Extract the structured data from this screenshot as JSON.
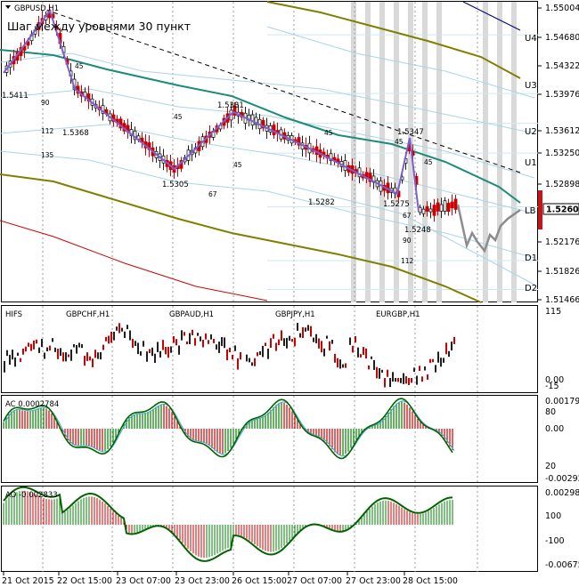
{
  "window": {
    "symbol_label": "GBPUSD,H1",
    "title": "Шаг между уровнями 30 пункт"
  },
  "colors": {
    "background": "#ffffff",
    "candle_up": "#1f1f1f",
    "candle_down": "#cc0000",
    "teal_ma": "#1a8c7a",
    "olive_ma": "#808000",
    "red_ma": "#cc0000",
    "navy_line": "#000080",
    "zigzag": "#7b5fd0",
    "band_lines": "#aad4e6",
    "forecast": "#8c8c8c",
    "price_marker": "#c81414",
    "vgrid_band": "#d9d9d9",
    "ac_up": "#008000",
    "ac_down": "#cc0000",
    "ao_line": "#006400"
  },
  "main": {
    "price_axis": [
      "1.55004",
      "1.54680",
      "1.54322",
      "1.53976",
      "1.53612",
      "1.53250",
      "1.52898",
      "1.52608",
      "1.52176",
      "1.51826",
      "1.51466"
    ],
    "current_price": "1.52608",
    "levels": [
      {
        "label": "U4",
        "value": 1.5468
      },
      {
        "label": "U3",
        "value": 1.5397
      },
      {
        "label": "U2",
        "value": 1.5361
      },
      {
        "label": "U1",
        "value": 1.5325
      },
      {
        "label": "LB",
        "value": 1.526
      },
      {
        "label": "D1",
        "value": 1.5195
      },
      {
        "label": "D2",
        "value": 1.516
      }
    ],
    "zigzag_prices": [
      "1.5411",
      "1.5368",
      "1.5305",
      "1.5381",
      "1.5282",
      "1.5275",
      "1.5347",
      "1.5248"
    ],
    "zigzag_counts": [
      "45",
      "90",
      "112",
      "135",
      "45",
      "45",
      "67",
      "45",
      "45",
      "45",
      "67",
      "90",
      "112"
    ]
  },
  "hifs": {
    "label": "HIFS",
    "pairs": [
      "GBPCHF,H1",
      "GBPAUD,H1",
      "GBPJPY,H1",
      "EURGBP,H1"
    ],
    "axis": [
      "115",
      "0.00",
      "-15"
    ]
  },
  "ac": {
    "label": "AC 0.0002784",
    "axis": [
      "0.00179",
      "80",
      "0.00",
      "20",
      "-0.00292"
    ]
  },
  "ao": {
    "label": "AO -0.002833",
    "axis": [
      "0.002985",
      "100",
      "-100",
      "-0.006755"
    ]
  },
  "time_axis": [
    "21 Oct 2015",
    "22 Oct 15:00",
    "23 Oct 07:00",
    "23 Oct 23:00",
    "26 Oct 15:00",
    "27 Oct 07:00",
    "27 Oct 23:00",
    "28 Oct 15:00"
  ],
  "chart_data": {
    "type": "candlestick",
    "symbol": "GBPUSD",
    "timeframe": "H1",
    "ylim": [
      1.5145,
      1.5505
    ],
    "zigzag": [
      {
        "time": "21 Oct 2015",
        "price": 1.5411
      },
      {
        "time": "22 Oct 03:00",
        "price": 1.549
      },
      {
        "time": "22 Oct 11:00",
        "price": 1.5368
      },
      {
        "time": "23 Oct 13:00",
        "price": 1.5305
      },
      {
        "time": "26 Oct 09:00",
        "price": 1.5381
      },
      {
        "time": "27 Oct 19:00",
        "price": 1.5282
      },
      {
        "time": "28 Oct 07:00",
        "price": 1.5275
      },
      {
        "time": "28 Oct 11:00",
        "price": 1.5347
      },
      {
        "time": "28 Oct 15:00",
        "price": 1.5248
      }
    ],
    "current_price": 1.52608
  }
}
